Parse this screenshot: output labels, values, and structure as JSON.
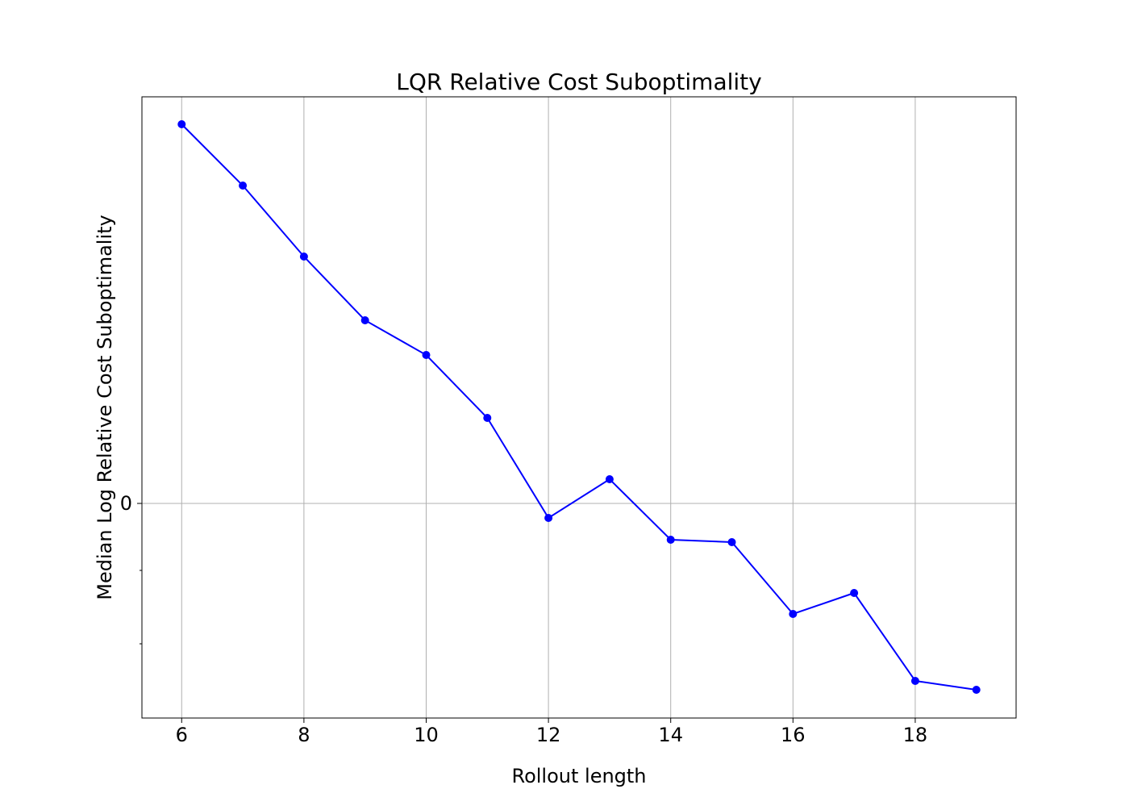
{
  "chart_data": {
    "type": "line",
    "title": "LQR Relative Cost Suboptimality",
    "xlabel": "Rollout length",
    "ylabel": "Median Log Relative Cost Suboptimality",
    "x": [
      6,
      7,
      8,
      9,
      10,
      11,
      12,
      13,
      14,
      15,
      16,
      17,
      18,
      19
    ],
    "series": [
      {
        "name": "",
        "color": "#0000ff",
        "marker": "circle",
        "values": [
          0.47,
          0.394,
          0.306,
          0.227,
          0.184,
          0.106,
          -0.018,
          0.03,
          -0.045,
          -0.048,
          -0.137,
          -0.111,
          -0.22,
          -0.231
        ]
      }
    ],
    "xticks": [
      6,
      8,
      10,
      12,
      14,
      16,
      18
    ],
    "xtick_labels": [
      "6",
      "8",
      "10",
      "12",
      "14",
      "16",
      "18"
    ],
    "yticks_labeled": [
      0
    ],
    "ytick_labels": [
      "0"
    ],
    "yticks_minor_unlabeled": [
      -0.083,
      -0.174
    ],
    "xlim": [
      5.35,
      19.65
    ],
    "ylim": [
      -0.266,
      0.504
    ],
    "grid": true,
    "legend": false
  }
}
